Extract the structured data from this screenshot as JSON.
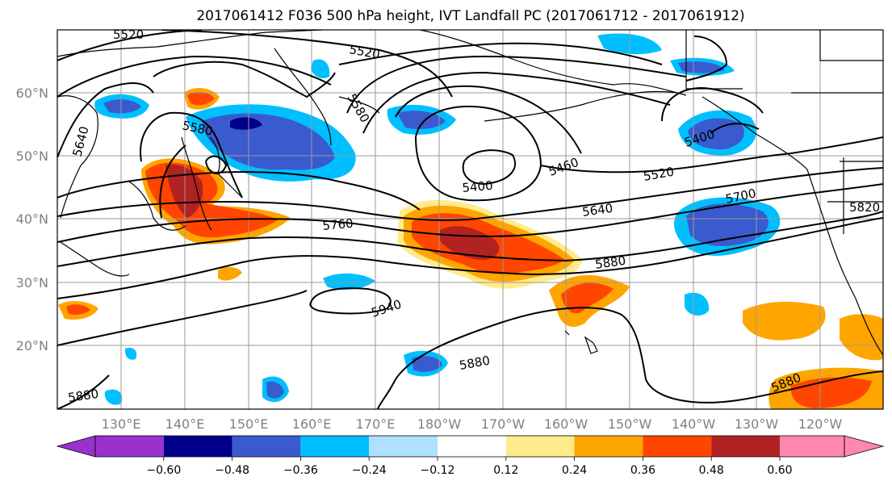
{
  "title": "2017061412 F036 500 hPa height, IVT Landfall PC (2017061712 - 2017061912)",
  "lat_labels": [
    "60°N",
    "50°N",
    "40°N",
    "30°N",
    "20°N"
  ],
  "lon_labels": [
    "130°E",
    "140°E",
    "150°E",
    "160°E",
    "170°E",
    "180°W",
    "170°W",
    "160°W",
    "150°W",
    "140°W",
    "130°W",
    "120°W"
  ],
  "height_labels": [
    "5520",
    "5520",
    "5580",
    "5580",
    "5640",
    "5400",
    "5460",
    "5520",
    "5400",
    "5640",
    "5700",
    "5760",
    "5880",
    "5940",
    "5880",
    "5880",
    "5820",
    "5880"
  ],
  "colorbar": {
    "ticks": [
      "−0.60",
      "−0.48",
      "−0.36",
      "−0.24",
      "−0.12",
      "0.12",
      "0.24",
      "0.36",
      "0.48",
      "0.60"
    ],
    "colors": [
      "#9932cc",
      "#00008b",
      "#3a5bcd",
      "#00bfff",
      "#b0e0ff",
      "#ffffff",
      "#ffeb8a",
      "#ffa500",
      "#ff4500",
      "#b22222",
      "#ff88b0"
    ]
  },
  "colors": {
    "neg_strong": "#3a5bcd",
    "neg_mid": "#00bfff",
    "neg_weak": "#b0e0ff",
    "neg_max": "#00008b",
    "pos_weak": "#ffeb8a",
    "pos_mid": "#ffa500",
    "pos_strong": "#ff4500",
    "pos_max": "#b22222"
  }
}
